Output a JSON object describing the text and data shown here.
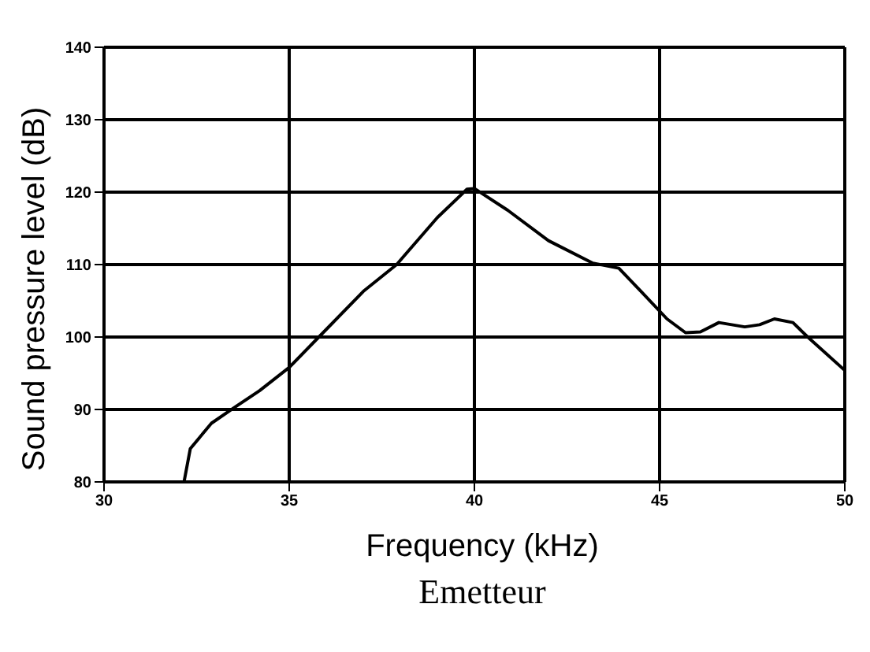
{
  "chart_data": {
    "type": "line",
    "title": "Emetteur",
    "xlabel": "Frequency (kHz)",
    "ylabel": "Sound pressure level (dB)",
    "x": [
      32.16,
      32.33,
      32.9,
      33.5,
      34.2,
      35.0,
      35.8,
      37.0,
      37.9,
      39.0,
      39.8,
      40.0,
      40.9,
      42.0,
      43.2,
      43.9,
      44.5,
      45.2,
      45.7,
      46.1,
      46.6,
      47.3,
      47.7,
      48.1,
      48.6,
      49.0,
      50.0
    ],
    "series": [
      {
        "color": "#000000",
        "values": [
          80,
          84.6,
          88.1,
          90.2,
          92.6,
          95.8,
          100,
          106.3,
          110,
          116.5,
          120.4,
          120.5,
          117.5,
          113.3,
          110.2,
          109.5,
          106.3,
          102.5,
          100.6,
          100.7,
          102.0,
          101.4,
          101.7,
          102.5,
          102.0,
          100,
          95.4
        ]
      }
    ],
    "xlim": [
      30,
      50
    ],
    "xticks": [
      30,
      35,
      40,
      45,
      50
    ],
    "ylim": [
      80,
      140
    ],
    "yticks": [
      80,
      90,
      100,
      110,
      120,
      130,
      140
    ],
    "grid": true,
    "marker": "none",
    "line_style": "solid"
  }
}
